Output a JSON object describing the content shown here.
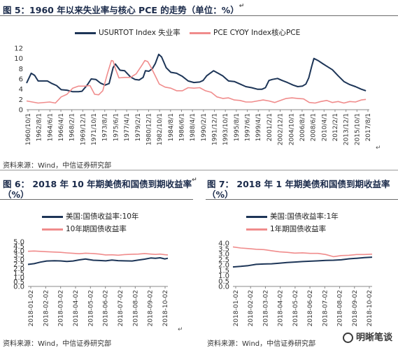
{
  "page": {
    "fig5_title": "图 5：1960 年以来失业率与核心 PCE 的走势（单位：%）",
    "fig6_title_line1": "图 6： 2018 年 10 年期美债和国债到期收益率",
    "fig6_title_line2": "（%）",
    "fig7_title_line1": "图 7： 2018 年 1 年期美债和国债到期收益率",
    "fig7_title_line2": "（%）",
    "source": "资料来源：Wind，中信证券研究部",
    "para_mark": "↵",
    "watermark": "明晰笔谈"
  },
  "colors": {
    "navy": "#1d3557",
    "pink": "#f08c8c",
    "rule": "#6b6b6b"
  },
  "chart_data": [
    {
      "id": "fig5",
      "type": "line",
      "ylim": [
        0,
        12
      ],
      "yticks": [
        0,
        2,
        4,
        6,
        8,
        10,
        12
      ],
      "xlim": [
        1960.0,
        2019.4
      ],
      "x_tick_labels": [
        "1960/10/1",
        "1962/8/1",
        "1964/6/1",
        "1966/4/1",
        "1968/2/1",
        "1969/12/1",
        "1971/10/1",
        "1973/8/1",
        "1975/6/1",
        "1977/4/1",
        "1979/2/1",
        "1980/12/1",
        "1982/10/1",
        "1984/8/1",
        "1986/6/1",
        "1988/4/1",
        "1990/2/1",
        "1991/12/1",
        "1993/10/1",
        "1995/8/1",
        "1997/6/1",
        "1999/4/1",
        "2001/2/1",
        "2002/12/1",
        "2004/10/1",
        "2006/8/1",
        "2008/6/1",
        "2010/4/1",
        "2012/2/1",
        "2013/12/1",
        "2015/10/1",
        "2017/8/1"
      ],
      "series": [
        {
          "name": "USURTOT  Index 失业率",
          "color": "#1d3557",
          "x": [
            1960.0,
            1960.8,
            1961.4,
            1962.0,
            1962.8,
            1963.6,
            1964.4,
            1965.2,
            1966.0,
            1967.0,
            1968.0,
            1969.0,
            1969.6,
            1970.5,
            1971.2,
            1972.0,
            1972.8,
            1973.6,
            1974.3,
            1975.0,
            1975.4,
            1976.2,
            1977.0,
            1978.0,
            1978.8,
            1979.5,
            1980.2,
            1980.6,
            1981.2,
            1981.8,
            1982.3,
            1982.9,
            1983.4,
            1984.2,
            1985.0,
            1986.0,
            1987.0,
            1988.0,
            1989.0,
            1990.0,
            1990.6,
            1991.2,
            1991.8,
            1992.4,
            1993.2,
            1994.0,
            1995.0,
            1996.0,
            1997.0,
            1998.0,
            1999.0,
            2000.0,
            2000.8,
            2001.4,
            2002.0,
            2002.6,
            2003.5,
            2004.3,
            2005.2,
            2006.2,
            2007.0,
            2007.8,
            2008.4,
            2008.9,
            2009.4,
            2009.8,
            2010.5,
            2011.3,
            2012.0,
            2013.0,
            2014.0,
            2015.0,
            2016.0,
            2017.0,
            2018.0,
            2018.8
          ],
          "y": [
            5.2,
            7.1,
            6.7,
            5.6,
            5.6,
            5.6,
            5.1,
            4.7,
            3.9,
            3.8,
            3.5,
            3.5,
            3.6,
            4.8,
            6.0,
            5.9,
            5.2,
            4.8,
            5.1,
            8.2,
            8.9,
            7.7,
            7.6,
            6.4,
            5.9,
            5.8,
            6.3,
            7.6,
            7.5,
            8.0,
            9.0,
            10.8,
            10.3,
            8.2,
            7.3,
            7.1,
            6.5,
            5.6,
            5.3,
            5.4,
            5.7,
            6.6,
            7.1,
            7.6,
            7.1,
            6.6,
            5.6,
            5.5,
            5.0,
            4.5,
            4.3,
            4.0,
            4.0,
            4.3,
            5.7,
            5.9,
            6.1,
            5.7,
            5.3,
            4.8,
            4.5,
            4.6,
            5.0,
            6.2,
            8.4,
            10.0,
            9.6,
            9.0,
            8.5,
            7.8,
            6.6,
            5.5,
            4.9,
            4.5,
            4.0,
            3.7
          ]
        },
        {
          "name": "PCE CYOY Index核心PCE",
          "color": "#f08c8c",
          "x": [
            1960.0,
            1962.0,
            1964.0,
            1965.0,
            1966.0,
            1967.0,
            1968.0,
            1969.0,
            1970.0,
            1971.0,
            1971.8,
            1972.5,
            1973.2,
            1974.0,
            1974.7,
            1975.0,
            1975.4,
            1976.0,
            1977.0,
            1978.0,
            1979.0,
            1980.0,
            1980.5,
            1981.0,
            1981.6,
            1982.3,
            1983.0,
            1984.0,
            1985.0,
            1986.0,
            1987.0,
            1988.0,
            1989.0,
            1990.0,
            1991.0,
            1992.0,
            1993.0,
            1994.0,
            1995.0,
            1996.0,
            1997.0,
            1998.0,
            1999.0,
            2000.0,
            2001.0,
            2002.0,
            2003.0,
            2004.0,
            2005.0,
            2006.0,
            2007.0,
            2008.0,
            2009.0,
            2010.0,
            2011.0,
            2012.0,
            2013.0,
            2014.0,
            2015.0,
            2016.0,
            2017.0,
            2018.0,
            2018.8
          ],
          "y": [
            1.7,
            1.3,
            1.5,
            1.3,
            2.5,
            3.0,
            4.2,
            4.6,
            4.6,
            4.7,
            3.0,
            2.9,
            3.7,
            7.0,
            9.6,
            9.5,
            8.0,
            6.2,
            6.3,
            6.3,
            7.0,
            8.7,
            9.6,
            9.4,
            8.2,
            6.6,
            5.0,
            4.4,
            4.2,
            3.7,
            3.7,
            4.3,
            4.2,
            4.3,
            3.7,
            3.4,
            2.5,
            2.2,
            2.3,
            1.9,
            1.8,
            1.5,
            1.5,
            1.7,
            1.9,
            1.7,
            1.4,
            1.8,
            2.2,
            2.3,
            2.2,
            2.1,
            1.4,
            1.3,
            1.6,
            1.8,
            1.4,
            1.6,
            1.3,
            1.6,
            1.5,
            1.9,
            2.0
          ]
        }
      ]
    },
    {
      "id": "fig6",
      "type": "line",
      "ylim": [
        0,
        5
      ],
      "yticks": [
        "0.0",
        "0.5",
        "1.0",
        "1.5",
        "2.0",
        "2.5",
        "3.0",
        "3.5",
        "4.0",
        "4.5",
        "5.0"
      ],
      "xlim": [
        2018.0,
        2018.9
      ],
      "x_tick_labels": [
        "2018-01-02",
        "2018-02-02",
        "2018-03-02",
        "2018-04-02",
        "2018-05-02",
        "2018-06-02",
        "2018-07-02",
        "2018-08-02",
        "2018-09-02",
        "2018-10-02"
      ],
      "series": [
        {
          "name": "美国:国债收益率:10年",
          "color": "#1d3557",
          "x": [
            2018.0,
            2018.04,
            2018.08,
            2018.12,
            2018.17,
            2018.21,
            2018.25,
            2018.29,
            2018.33,
            2018.37,
            2018.42,
            2018.46,
            2018.5,
            2018.54,
            2018.58,
            2018.62,
            2018.67,
            2018.71,
            2018.75,
            2018.79,
            2018.82,
            2018.85,
            2018.88,
            2018.9
          ],
          "y": [
            2.46,
            2.55,
            2.72,
            2.84,
            2.87,
            2.85,
            2.79,
            2.84,
            2.97,
            3.06,
            2.93,
            2.9,
            2.86,
            2.95,
            2.88,
            2.86,
            2.84,
            2.95,
            3.05,
            3.18,
            3.14,
            3.2,
            3.08,
            3.15
          ]
        },
        {
          "name": "10年期国债收益率",
          "color": "#f08c8c",
          "x": [
            2018.0,
            2018.04,
            2018.08,
            2018.12,
            2018.17,
            2018.21,
            2018.25,
            2018.29,
            2018.33,
            2018.37,
            2018.42,
            2018.46,
            2018.5,
            2018.54,
            2018.58,
            2018.62,
            2018.67,
            2018.71,
            2018.75,
            2018.79,
            2018.82,
            2018.85,
            2018.88,
            2018.9
          ],
          "y": [
            3.93,
            3.96,
            3.92,
            3.88,
            3.84,
            3.81,
            3.75,
            3.7,
            3.66,
            3.72,
            3.68,
            3.62,
            3.52,
            3.54,
            3.49,
            3.56,
            3.6,
            3.62,
            3.68,
            3.62,
            3.58,
            3.62,
            3.55,
            3.52
          ]
        }
      ]
    },
    {
      "id": "fig7",
      "type": "line",
      "ylim": [
        0,
        4
      ],
      "yticks": [
        "0.0",
        "0.5",
        "1.0",
        "1.5",
        "2.0",
        "2.5",
        "3.0",
        "3.5",
        "4.0"
      ],
      "xlim": [
        2018.0,
        2018.9
      ],
      "x_tick_labels": [
        "2018-01-02",
        "2018-02-02",
        "2018-03-02",
        "2018-04-02",
        "2018-05-02",
        "2018-06-02",
        "2018-07-02",
        "2018-08-02",
        "2018-09-02",
        "2018-10-02"
      ],
      "series": [
        {
          "name": "美国:国债收益率:1年",
          "color": "#1d3557",
          "x": [
            2018.0,
            2018.05,
            2018.1,
            2018.15,
            2018.2,
            2018.25,
            2018.3,
            2018.35,
            2018.4,
            2018.45,
            2018.5,
            2018.55,
            2018.6,
            2018.65,
            2018.7,
            2018.75,
            2018.8,
            2018.85,
            2018.9
          ],
          "y": [
            1.8,
            1.85,
            1.92,
            2.04,
            2.07,
            2.09,
            2.15,
            2.21,
            2.25,
            2.3,
            2.33,
            2.36,
            2.4,
            2.42,
            2.46,
            2.55,
            2.6,
            2.66,
            2.7
          ]
        },
        {
          "name": "1年期国债收益率",
          "color": "#f08c8c",
          "x": [
            2018.0,
            2018.05,
            2018.1,
            2018.15,
            2018.2,
            2018.25,
            2018.3,
            2018.35,
            2018.4,
            2018.45,
            2018.5,
            2018.55,
            2018.6,
            2018.65,
            2018.7,
            2018.75,
            2018.8,
            2018.85,
            2018.9
          ],
          "y": [
            3.65,
            3.55,
            3.5,
            3.43,
            3.4,
            3.3,
            3.2,
            3.15,
            3.08,
            3.1,
            3.05,
            3.05,
            2.95,
            2.75,
            2.85,
            2.88,
            2.95,
            2.95,
            2.98
          ]
        }
      ]
    }
  ]
}
